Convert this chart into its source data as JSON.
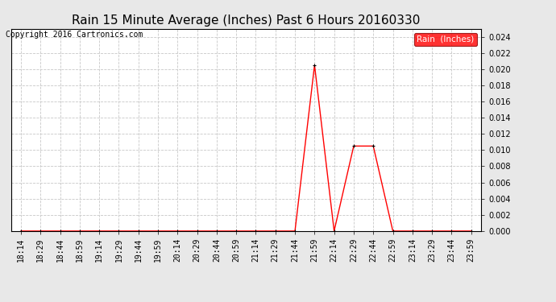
{
  "title": "Rain 15 Minute Average (Inches) Past 6 Hours 20160330",
  "copyright_text": "Copyright 2016 Cartronics.com",
  "legend_label": "Rain  (Inches)",
  "legend_color": "#ff0000",
  "line_color": "#ff0000",
  "marker_color": "#000000",
  "background_color": "#e8e8e8",
  "plot_bg_color": "#ffffff",
  "grid_color": "#c8c8c8",
  "ylim": [
    0.0,
    0.025
  ],
  "yticks": [
    0.0,
    0.002,
    0.004,
    0.006,
    0.008,
    0.01,
    0.012,
    0.014,
    0.016,
    0.018,
    0.02,
    0.022,
    0.024
  ],
  "x_labels": [
    "18:14",
    "18:29",
    "18:44",
    "18:59",
    "19:14",
    "19:29",
    "19:44",
    "19:59",
    "20:14",
    "20:29",
    "20:44",
    "20:59",
    "21:14",
    "21:29",
    "21:44",
    "21:59",
    "22:14",
    "22:29",
    "22:44",
    "22:59",
    "23:14",
    "23:29",
    "23:44",
    "23:59"
  ],
  "y_values": [
    0.0,
    0.0,
    0.0,
    0.0,
    0.0,
    0.0,
    0.0,
    0.0,
    0.0,
    0.0,
    0.0,
    0.0,
    0.0,
    0.0,
    0.0,
    0.0205,
    0.0,
    0.0105,
    0.0105,
    0.0,
    0.0,
    0.0,
    0.0,
    0.0
  ],
  "title_fontsize": 11,
  "tick_fontsize": 7,
  "copyright_fontsize": 7
}
